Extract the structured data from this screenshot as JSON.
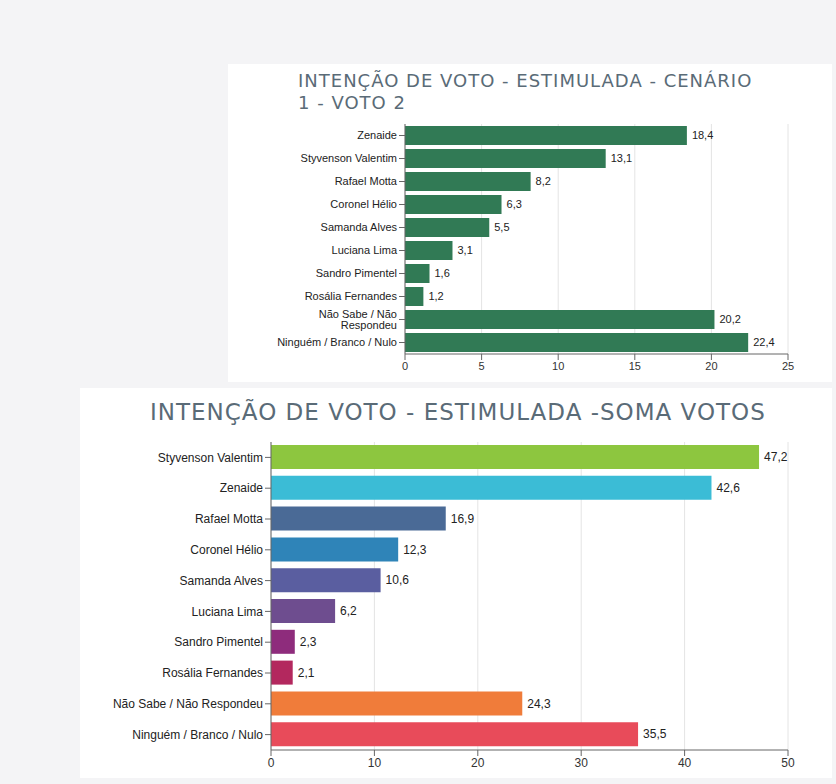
{
  "chart_data": [
    {
      "type": "bar",
      "title": "INTENÇÃO DE VOTO - ESTIMULADA - CENÁRIO 1 - VOTO 2",
      "orientation": "horizontal",
      "categories": [
        "Zenaide",
        "Styvenson Valentim",
        "Rafael Motta",
        "Coronel Hélio",
        "Samanda Alves",
        "Luciana Lima",
        "Sandro Pimentel",
        "Rosália Fernandes",
        "Não Sabe / Não Respondeu",
        "Ninguém / Branco / Nulo"
      ],
      "values": [
        18.4,
        13.1,
        8.2,
        6.3,
        5.5,
        3.1,
        1.6,
        1.2,
        20.2,
        22.4
      ],
      "value_labels": [
        "18,4",
        "13,1",
        "8,2",
        "6,3",
        "5,5",
        "3,1",
        "1,6",
        "1,2",
        "20,2",
        "22,4"
      ],
      "color": "#317a55",
      "xlim": [
        0,
        25
      ],
      "xticks": [
        0,
        5,
        10,
        15,
        20,
        25
      ],
      "grid": true,
      "data_labels": true
    },
    {
      "type": "bar",
      "title": "INTENÇÃO DE VOTO - ESTIMULADA -SOMA VOTOS",
      "orientation": "horizontal",
      "categories": [
        "Styvenson Valentim",
        "Zenaide",
        "Rafael Motta",
        "Coronel Hélio",
        "Samanda Alves",
        "Luciana Lima",
        "Sandro Pimentel",
        "Rosália Fernandes",
        "Não Sabe / Não Respondeu",
        "Ninguém / Branco / Nulo"
      ],
      "values": [
        47.2,
        42.6,
        16.9,
        12.3,
        10.6,
        6.2,
        2.3,
        2.1,
        24.3,
        35.5
      ],
      "value_labels": [
        "47,2",
        "42,6",
        "16,9",
        "12,3",
        "10,6",
        "6,2",
        "2,3",
        "2,1",
        "24,3",
        "35,5"
      ],
      "colors": [
        "#8dc63f",
        "#3bbcd6",
        "#4a6a96",
        "#2f84b8",
        "#5a5ea0",
        "#6e4d8f",
        "#8e2c7c",
        "#b3285e",
        "#f07c3a",
        "#e84b5a"
      ],
      "xlim": [
        0,
        50
      ],
      "xticks": [
        0,
        10,
        20,
        30,
        40,
        50
      ],
      "grid": true,
      "data_labels": true
    }
  ]
}
